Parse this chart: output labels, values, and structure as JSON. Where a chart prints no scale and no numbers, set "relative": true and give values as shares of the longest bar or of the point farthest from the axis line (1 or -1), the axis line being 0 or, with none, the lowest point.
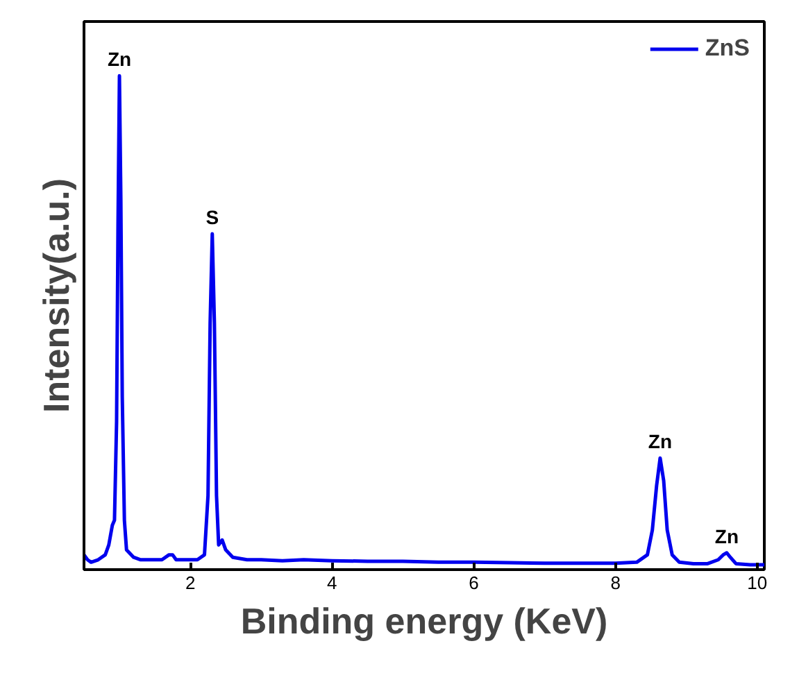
{
  "chart_data": {
    "type": "line",
    "xlabel": "Binding energy (KeV)",
    "ylabel": "Intensity(a.u.)",
    "relative": true,
    "xlim": [
      0.5,
      10.1
    ],
    "xticks": [
      2,
      4,
      6,
      8,
      10
    ],
    "tick_labels": "x",
    "grid": false,
    "legend": "top right",
    "line_style": "solid",
    "marker": "none",
    "series": [
      {
        "name": "ZnS",
        "color": "#0000ee",
        "x": [
          0.5,
          0.55,
          0.6,
          0.7,
          0.8,
          0.85,
          0.9,
          0.93,
          0.96,
          0.98,
          1.0,
          1.02,
          1.04,
          1.07,
          1.1,
          1.2,
          1.3,
          1.4,
          1.5,
          1.6,
          1.7,
          1.75,
          1.8,
          1.9,
          2.0,
          2.1,
          2.2,
          2.25,
          2.28,
          2.31,
          2.34,
          2.37,
          2.4,
          2.45,
          2.5,
          2.6,
          2.8,
          3.0,
          3.3,
          3.6,
          4.0,
          4.5,
          5.0,
          5.5,
          6.0,
          6.5,
          7.0,
          7.5,
          8.0,
          8.3,
          8.45,
          8.52,
          8.58,
          8.63,
          8.68,
          8.73,
          8.8,
          8.9,
          9.1,
          9.3,
          9.45,
          9.52,
          9.57,
          9.62,
          9.7,
          9.9,
          10.1
        ],
        "values": [
          0.03,
          0.02,
          0.015,
          0.02,
          0.03,
          0.05,
          0.09,
          0.1,
          0.3,
          0.7,
          1.0,
          0.75,
          0.35,
          0.1,
          0.04,
          0.025,
          0.02,
          0.02,
          0.02,
          0.02,
          0.03,
          0.03,
          0.02,
          0.02,
          0.02,
          0.02,
          0.03,
          0.15,
          0.5,
          0.68,
          0.5,
          0.15,
          0.05,
          0.06,
          0.04,
          0.025,
          0.02,
          0.02,
          0.018,
          0.02,
          0.018,
          0.017,
          0.017,
          0.015,
          0.015,
          0.014,
          0.013,
          0.013,
          0.013,
          0.015,
          0.03,
          0.08,
          0.17,
          0.226,
          0.18,
          0.08,
          0.03,
          0.015,
          0.012,
          0.012,
          0.02,
          0.03,
          0.034,
          0.025,
          0.012,
          0.01,
          0.01
        ]
      }
    ],
    "annotations": [
      {
        "text": "Zn",
        "x": 1.0,
        "y": 1.0
      },
      {
        "text": "S",
        "x": 2.31,
        "y": 0.68
      },
      {
        "text": "Zn",
        "x": 8.63,
        "y": 0.226
      },
      {
        "text": "Zn",
        "x": 9.57,
        "y": 0.034
      }
    ]
  }
}
